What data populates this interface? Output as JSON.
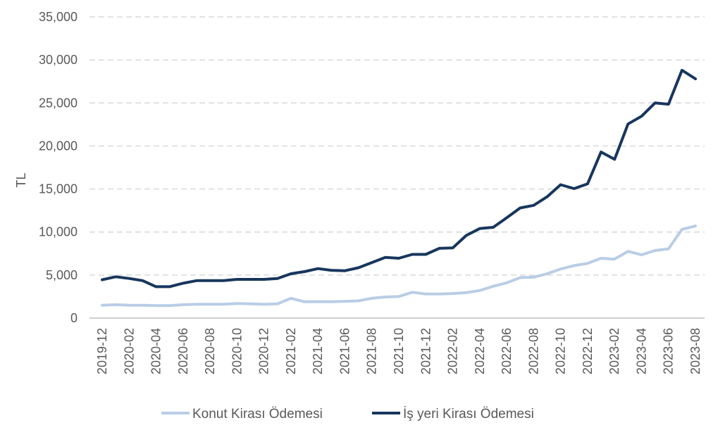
{
  "chart_data": {
    "type": "line",
    "title": "",
    "xlabel": "",
    "ylabel": "TL",
    "ylim": [
      0,
      35000
    ],
    "yticks": [
      0,
      5000,
      10000,
      15000,
      20000,
      25000,
      30000,
      35000
    ],
    "ytick_labels": [
      "0",
      "5,000",
      "10,000",
      "15,000",
      "20,000",
      "25,000",
      "30,000",
      "35,000"
    ],
    "grid": true,
    "legend_position": "bottom",
    "categories": [
      "2019-12",
      "2020-01",
      "2020-02",
      "2020-03",
      "2020-04",
      "2020-05",
      "2020-06",
      "2020-07",
      "2020-08",
      "2020-09",
      "2020-10",
      "2020-11",
      "2020-12",
      "2021-01",
      "2021-02",
      "2021-03",
      "2021-04",
      "2021-05",
      "2021-06",
      "2021-07",
      "2021-08",
      "2021-09",
      "2021-10",
      "2021-11",
      "2021-12",
      "2022-01",
      "2022-02",
      "2022-03",
      "2022-04",
      "2022-05",
      "2022-06",
      "2022-07",
      "2022-08",
      "2022-09",
      "2022-10",
      "2022-11",
      "2022-12",
      "2023-01",
      "2023-02",
      "2023-03",
      "2023-04",
      "2023-05",
      "2023-06",
      "2023-07",
      "2023-08"
    ],
    "xtick_labels": [
      "2019-12",
      "2020-02",
      "2020-04",
      "2020-06",
      "2020-08",
      "2020-10",
      "2020-12",
      "2021-02",
      "2021-04",
      "2021-06",
      "2021-08",
      "2021-10",
      "2021-12",
      "2022-02",
      "2022-04",
      "2022-06",
      "2022-08",
      "2022-10",
      "2022-12",
      "2023-02",
      "2023-04",
      "2023-06",
      "2023-08"
    ],
    "series": [
      {
        "name": "Konut Kirası Ödemesi",
        "color": "#b9cde5",
        "values": [
          1500,
          1550,
          1500,
          1500,
          1450,
          1450,
          1550,
          1600,
          1600,
          1600,
          1700,
          1650,
          1600,
          1650,
          2300,
          1900,
          1900,
          1900,
          1950,
          2000,
          2300,
          2450,
          2500,
          3000,
          2800,
          2800,
          2850,
          2950,
          3200,
          3700,
          4100,
          4700,
          4750,
          5150,
          5700,
          6100,
          6350,
          6950,
          6850,
          7750,
          7350,
          7850,
          8050,
          10300,
          10700
        ]
      },
      {
        "name": "İş yeri Kirası Ödemesi",
        "color": "#17365d",
        "values": [
          4450,
          4800,
          4600,
          4350,
          3650,
          3650,
          4050,
          4350,
          4350,
          4350,
          4500,
          4500,
          4500,
          4600,
          5150,
          5400,
          5750,
          5550,
          5500,
          5850,
          6450,
          7050,
          6950,
          7400,
          7400,
          8100,
          8150,
          9600,
          10400,
          10550,
          11650,
          12800,
          13100,
          14100,
          15500,
          15050,
          15600,
          19300,
          18450,
          22550,
          23450,
          25000,
          24850,
          28800,
          27800
        ]
      }
    ]
  }
}
